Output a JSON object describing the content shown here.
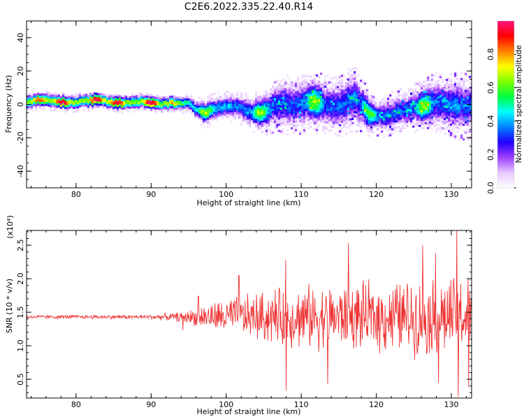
{
  "title": "C2E6.2022.335.22.40.R14",
  "chart_data": [
    {
      "type": "heatmap",
      "xlabel": "Height of straight line (km)",
      "ylabel": "Frequency (Hz)",
      "xlim": [
        73.4,
        132.7
      ],
      "ylim": [
        -50,
        50
      ],
      "xticks": [
        80,
        90,
        100,
        110,
        120,
        130
      ],
      "yticks": [
        -40,
        -20,
        0,
        20,
        40
      ],
      "colorbar": {
        "label": "Normalized spectral amplitude",
        "range": [
          0,
          1
        ],
        "ticks": [
          "0.0",
          "0.2",
          "0.4",
          "0.6",
          "0.8"
        ],
        "tick_values": [
          0,
          0.2,
          0.4,
          0.6,
          0.8
        ],
        "colormap": [
          "#ffffff",
          "#e6c8ff",
          "#a040ff",
          "#2000ff",
          "#0080ff",
          "#00ffff",
          "#00ff40",
          "#80ff00",
          "#ffff00",
          "#ff8000",
          "#ff0000",
          "#ff1080"
        ]
      },
      "ridge": {
        "x": [
          73.4,
          75,
          77,
          79,
          81,
          83,
          85,
          87,
          89,
          91,
          93,
          95,
          96,
          97,
          99,
          101,
          103,
          105,
          107,
          109,
          111,
          113,
          115,
          117,
          118,
          119,
          120,
          122,
          124,
          126,
          128,
          130,
          132,
          132.7
        ],
        "y": [
          1,
          3,
          2,
          1,
          2,
          3,
          1,
          1,
          2,
          0,
          1,
          1,
          -3,
          -5,
          -2,
          -1,
          -4,
          -5,
          1,
          -1,
          2,
          0,
          -1,
          4,
          0,
          -5,
          -7,
          -6,
          -3,
          -1,
          1,
          0,
          -1,
          0
        ],
        "width": [
          2.5,
          2.5,
          2.5,
          2.5,
          2.5,
          2.5,
          2.5,
          2.5,
          2.5,
          2.5,
          2.5,
          2.5,
          3,
          4,
          4,
          4,
          5,
          6,
          8,
          8,
          8,
          8,
          8,
          9,
          8,
          6,
          5,
          6,
          6,
          7,
          8,
          9,
          9,
          9
        ],
        "amp": [
          0.9,
          0.95,
          0.9,
          0.85,
          0.9,
          0.95,
          0.95,
          0.9,
          0.9,
          0.85,
          0.85,
          0.7,
          0.6,
          0.55,
          0.55,
          0.5,
          0.5,
          0.5,
          0.45,
          0.45,
          0.5,
          0.45,
          0.45,
          0.5,
          0.45,
          0.45,
          0.45,
          0.45,
          0.45,
          0.5,
          0.45,
          0.45,
          0.45,
          0.45
        ]
      }
    },
    {
      "type": "line",
      "xlabel": "Height of straight line (km)",
      "ylabel": "SNR (10 * v/v)",
      "y_multiplier": "(x10⁴)",
      "xlim": [
        73.4,
        132.7
      ],
      "ylim": [
        0.22,
        2.72
      ],
      "xticks": [
        80,
        90,
        100,
        110,
        120,
        130
      ],
      "yticks": [
        0.5,
        1.0,
        1.5,
        2.0,
        2.5
      ],
      "series": [
        {
          "color": "#ee3333",
          "noise_envelope": {
            "x": [
              73.4,
              90,
              93,
              95,
              97,
              100,
              105,
              110,
              115,
              120,
              125,
              132.7
            ],
            "amp": [
              0.03,
              0.04,
              0.07,
              0.12,
              0.2,
              0.32,
              0.45,
              0.55,
              0.55,
              0.6,
              0.65,
              0.7
            ]
          },
          "baseline": 1.43,
          "peaks": [
            [
              107.9,
              2.28
            ],
            [
              108.0,
              0.33
            ],
            [
              116.3,
              2.53
            ],
            [
              113.5,
              0.43
            ],
            [
              126.2,
              2.5
            ],
            [
              130.7,
              2.72
            ],
            [
              130.9,
              0.24
            ],
            [
              127.9,
              2.38
            ],
            [
              101.7,
              2.05
            ],
            [
              96.3,
              1.74
            ],
            [
              94.2,
              1.23
            ],
            [
              128.3,
              0.45
            ],
            [
              132.3,
              0.38
            ]
          ]
        }
      ]
    }
  ]
}
